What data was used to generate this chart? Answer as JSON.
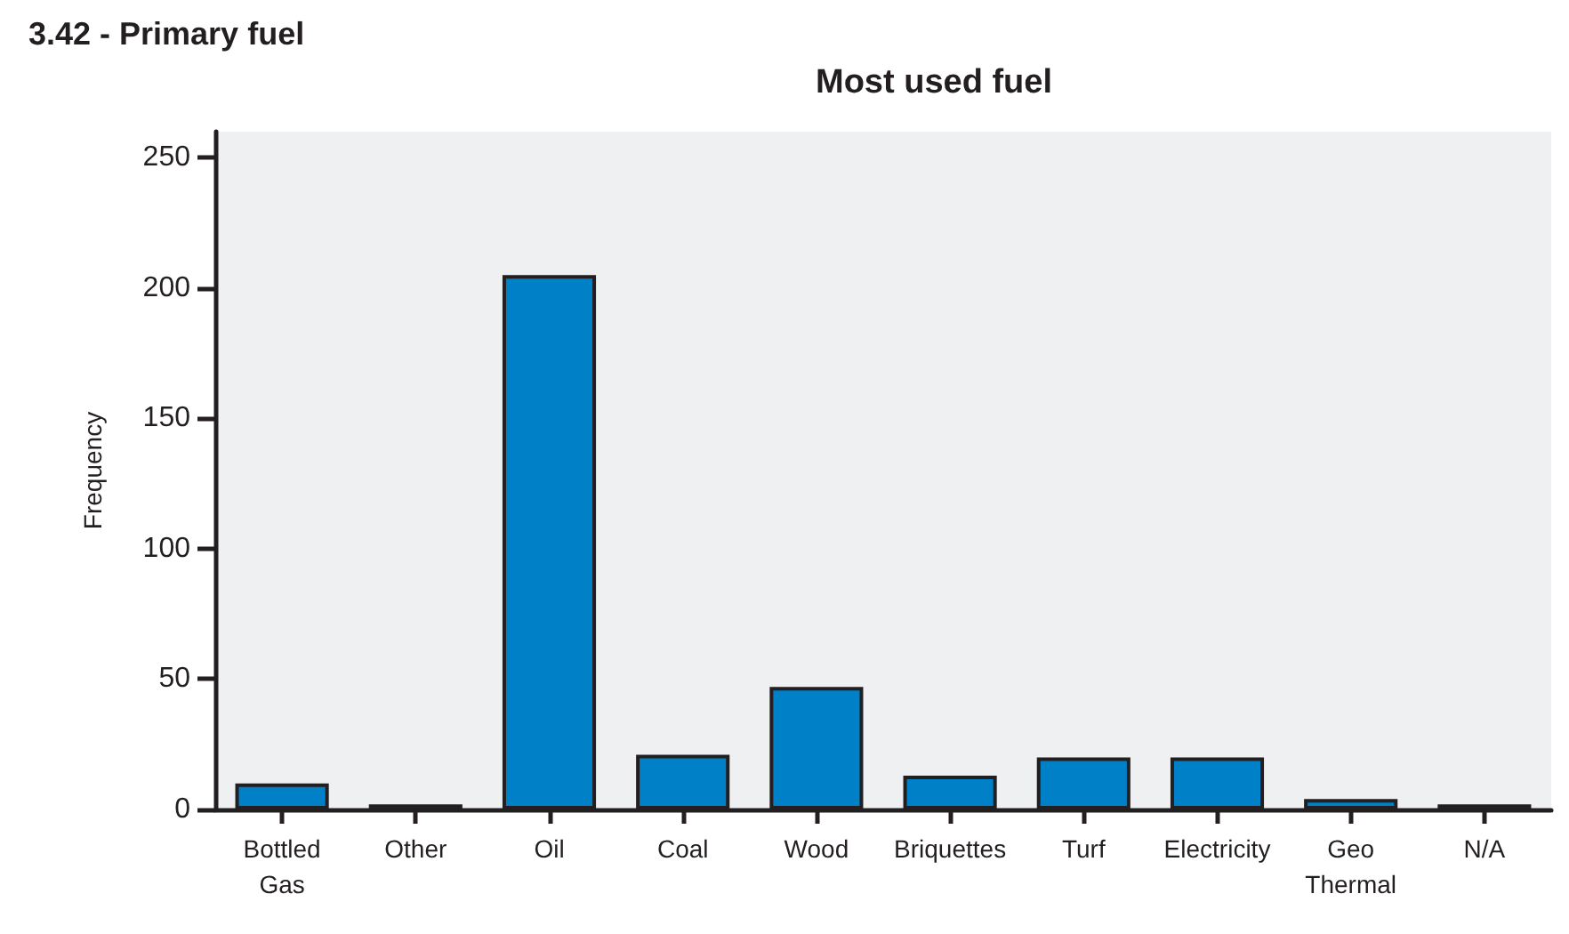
{
  "chart_data": {
    "type": "bar",
    "title": "Most used fuel",
    "ylabel": "Frequency",
    "annotations": [
      "3.42 - Primary fuel"
    ],
    "categories": [
      "Bottled\nGas",
      "Other",
      "Oil",
      "Coal",
      "Wood",
      "Briquettes",
      "Turf",
      "Electricity",
      "Geo\nThermal",
      "N/A"
    ],
    "values": [
      10,
      2,
      205,
      21,
      47,
      13,
      20,
      20,
      4,
      2
    ],
    "color": "#0080c6",
    "ylim": [
      0,
      260
    ],
    "yticks": [
      0,
      50,
      100,
      150,
      200,
      250
    ],
    "grid": false
  }
}
